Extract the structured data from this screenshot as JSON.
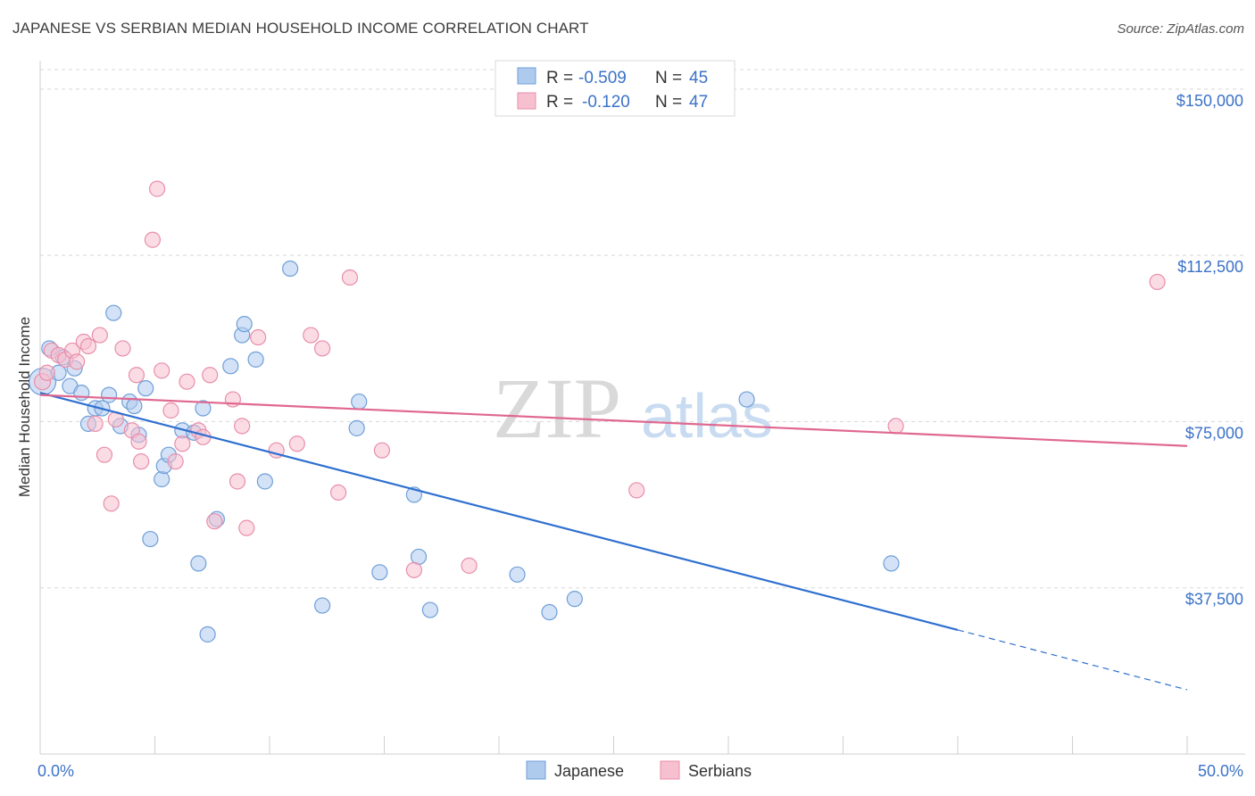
{
  "title": "JAPANESE VS SERBIAN MEDIAN HOUSEHOLD INCOME CORRELATION CHART",
  "source": "Source: ZipAtlas.com",
  "watermark": {
    "zip": "ZIP",
    "atlas": "atlas"
  },
  "legend": {
    "rows": [
      {
        "r_label": "R =",
        "r_value": "-0.509",
        "n_label": "N =",
        "n_value": "45"
      },
      {
        "r_label": "R =",
        "r_value": "-0.120",
        "n_label": "N =",
        "n_value": "47"
      }
    ]
  },
  "bottom_legend": [
    "Japanese",
    "Serbians"
  ],
  "colors": {
    "japanese_fill": "#aecbee",
    "japanese_stroke": "#6f9fd8",
    "japanese_line": "#2e6fcf",
    "serbian_fill": "#f7c0d0",
    "serbian_stroke": "#e88eaa",
    "serbian_line": "#e06890",
    "tick_text": "#3b72c8",
    "grid": "#d8d8d8"
  },
  "chart_data": {
    "type": "scatter",
    "title": "JAPANESE VS SERBIAN MEDIAN HOUSEHOLD INCOME CORRELATION CHART",
    "xlabel": "",
    "ylabel": "Median Household Income",
    "xlim": [
      0,
      50
    ],
    "ylim": [
      0,
      155000
    ],
    "x_tick_labels": [
      "0.0%",
      "50.0%"
    ],
    "y_ticks": [
      37500,
      75000,
      112500,
      150000
    ],
    "y_tick_labels": [
      "$37,500",
      "$75,000",
      "$112,500",
      "$150,000"
    ],
    "grid": "horizontal dashed",
    "series": [
      {
        "name": "Japanese",
        "points": [
          [
            0.1,
            84000
          ],
          [
            0.4,
            91500
          ],
          [
            0.8,
            86000
          ],
          [
            1.0,
            89500
          ],
          [
            1.3,
            83000
          ],
          [
            1.5,
            87000
          ],
          [
            1.8,
            81500
          ],
          [
            2.1,
            74500
          ],
          [
            2.4,
            78000
          ],
          [
            2.7,
            78000
          ],
          [
            3.0,
            81000
          ],
          [
            3.2,
            99500
          ],
          [
            3.5,
            74000
          ],
          [
            3.9,
            79500
          ],
          [
            4.1,
            78500
          ],
          [
            4.3,
            72000
          ],
          [
            4.6,
            82500
          ],
          [
            4.8,
            48500
          ],
          [
            5.3,
            62000
          ],
          [
            5.4,
            65000
          ],
          [
            5.6,
            67500
          ],
          [
            6.2,
            73000
          ],
          [
            6.7,
            72500
          ],
          [
            6.9,
            43000
          ],
          [
            7.1,
            78000
          ],
          [
            7.3,
            27000
          ],
          [
            7.7,
            53000
          ],
          [
            8.3,
            87500
          ],
          [
            8.8,
            94500
          ],
          [
            8.9,
            97000
          ],
          [
            9.4,
            89000
          ],
          [
            9.8,
            61500
          ],
          [
            10.9,
            109500
          ],
          [
            12.3,
            33500
          ],
          [
            13.9,
            79500
          ],
          [
            13.8,
            73500
          ],
          [
            14.8,
            41000
          ],
          [
            16.3,
            58500
          ],
          [
            16.5,
            44500
          ],
          [
            17.0,
            32500
          ],
          [
            20.8,
            40500
          ],
          [
            22.2,
            32000
          ],
          [
            23.3,
            35000
          ],
          [
            30.8,
            80000
          ],
          [
            37.1,
            43000
          ]
        ]
      },
      {
        "name": "Serbians",
        "points": [
          [
            0.1,
            84000
          ],
          [
            0.5,
            91000
          ],
          [
            0.8,
            90000
          ],
          [
            1.1,
            89000
          ],
          [
            1.4,
            91000
          ],
          [
            1.6,
            88500
          ],
          [
            1.9,
            93000
          ],
          [
            2.1,
            92000
          ],
          [
            2.4,
            74500
          ],
          [
            2.6,
            94500
          ],
          [
            2.8,
            67500
          ],
          [
            3.1,
            56500
          ],
          [
            3.3,
            75500
          ],
          [
            3.6,
            91500
          ],
          [
            4.0,
            73000
          ],
          [
            4.2,
            85500
          ],
          [
            4.3,
            70500
          ],
          [
            4.4,
            66000
          ],
          [
            4.9,
            116000
          ],
          [
            5.1,
            127500
          ],
          [
            5.3,
            86500
          ],
          [
            5.7,
            77500
          ],
          [
            5.9,
            66000
          ],
          [
            6.2,
            70000
          ],
          [
            6.4,
            84000
          ],
          [
            6.9,
            73000
          ],
          [
            7.1,
            71500
          ],
          [
            7.4,
            85500
          ],
          [
            7.6,
            52500
          ],
          [
            8.4,
            80000
          ],
          [
            8.6,
            61500
          ],
          [
            8.8,
            74000
          ],
          [
            9.0,
            51000
          ],
          [
            9.5,
            94000
          ],
          [
            10.3,
            68500
          ],
          [
            11.2,
            70000
          ],
          [
            11.8,
            94500
          ],
          [
            12.3,
            91500
          ],
          [
            13.0,
            59000
          ],
          [
            13.5,
            107500
          ],
          [
            14.9,
            68500
          ],
          [
            16.3,
            41500
          ],
          [
            18.7,
            42500
          ],
          [
            26.0,
            59500
          ],
          [
            37.3,
            74000
          ],
          [
            48.7,
            106500
          ],
          [
            0.3,
            86000
          ]
        ]
      }
    ],
    "trend_lines": [
      {
        "name": "Japanese",
        "x_start": 0,
        "y_start": 81500,
        "x_solid_end": 40,
        "y_solid_end": 28000,
        "x_dashed_end": 50,
        "y_dashed_end": 14500
      },
      {
        "name": "Serbians",
        "x_start": 0,
        "y_start": 81000,
        "x_end": 50,
        "y_end": 69500
      }
    ],
    "legend_position": "top-center"
  }
}
